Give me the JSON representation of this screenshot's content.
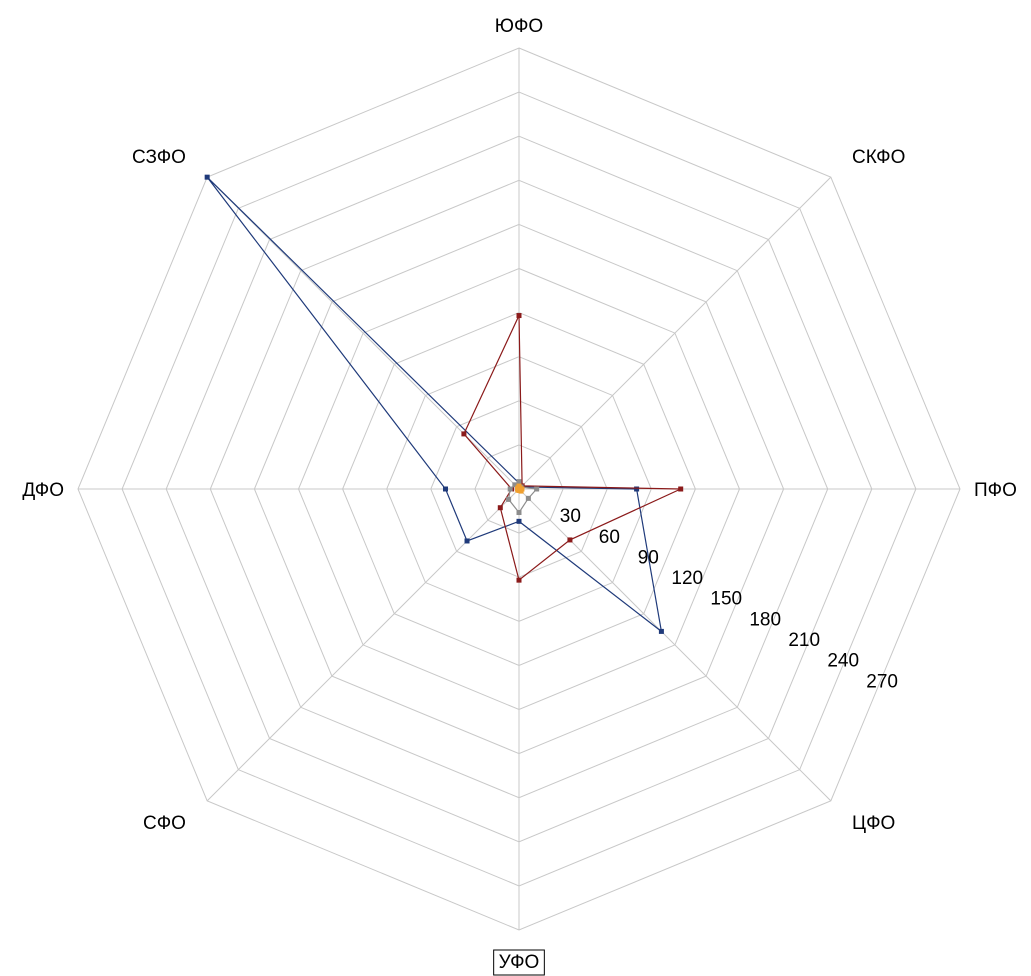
{
  "chart_data": {
    "type": "radar",
    "title": "",
    "axes": [
      "ЮФО",
      "СКФО",
      "ПФО",
      "ЦФО",
      "УФО",
      "СФО",
      "ДФО",
      "СЗФО"
    ],
    "ticks": [
      30,
      60,
      90,
      120,
      150,
      180,
      210,
      240,
      270
    ],
    "rmax": 300,
    "grid": true,
    "legend": "none",
    "selected_axis": "УФО",
    "series": [
      {
        "color": "#1f3a7a",
        "values": [
          4,
          2,
          80,
          137,
          22,
          50,
          50,
          300
        ]
      },
      {
        "color": "#8b1a1a",
        "values": [
          118,
          3,
          110,
          49,
          62,
          18,
          5,
          53
        ]
      },
      {
        "color": "#8c8c8c",
        "values": [
          5,
          2,
          12,
          9,
          16,
          10,
          6,
          4
        ]
      },
      {
        "color": "#f0a030",
        "values": [
          2,
          1,
          2,
          2,
          1,
          1,
          1,
          1
        ]
      }
    ]
  }
}
